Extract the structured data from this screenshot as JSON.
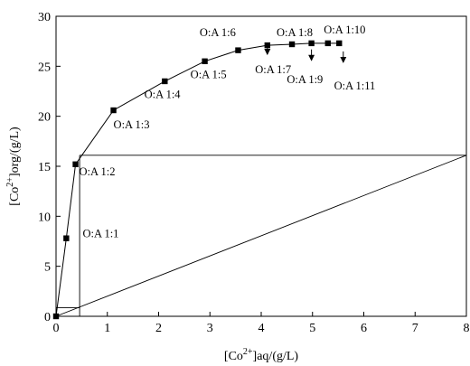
{
  "chart_data": {
    "type": "line",
    "title": "",
    "xlabel": {
      "prefix": "[Co",
      "sup": "2+",
      "suffix": "]aq/(g/L)"
    },
    "ylabel": {
      "prefix": "[Co",
      "sup": "2+",
      "suffix": "]org/(g/L)"
    },
    "xlim": [
      0,
      8
    ],
    "ylim": [
      0,
      30
    ],
    "xticks": [
      "0",
      "1",
      "2",
      "3",
      "4",
      "5",
      "6",
      "7",
      "8"
    ],
    "yticks": [
      "0",
      "5",
      "10",
      "15",
      "20",
      "25",
      "30"
    ],
    "grid": false,
    "series": [
      {
        "marker": "square",
        "color": "#000000",
        "x": [
          0.0,
          0.2,
          0.38,
          1.12,
          2.12,
          2.9,
          3.55,
          4.12,
          4.6,
          4.98,
          5.3,
          5.52
        ],
        "y": [
          0.0,
          7.8,
          15.2,
          20.6,
          23.5,
          25.5,
          26.6,
          27.1,
          27.2,
          27.3,
          27.3,
          27.3
        ]
      }
    ],
    "operating_line": {
      "x": [
        0,
        8
      ],
      "y": [
        0,
        16.1
      ]
    },
    "construction_lines": [
      {
        "x": [
          0.46,
          0.46
        ],
        "y": [
          0,
          16.1
        ]
      },
      {
        "x": [
          0.46,
          8
        ],
        "y": [
          16.1,
          16.1
        ]
      },
      {
        "x": [
          0,
          0.46
        ],
        "y": [
          0.85,
          0.85
        ]
      }
    ],
    "annotations": [
      {
        "text": "O:A 1:1",
        "x": 0.52,
        "y": 7.9,
        "arrow": false
      },
      {
        "text": "O:A 1:2",
        "x": 0.45,
        "y": 14.1,
        "arrow": false
      },
      {
        "text": "O:A 1:3",
        "x": 1.12,
        "y": 18.8,
        "arrow": false
      },
      {
        "text": "O:A 1:4",
        "x": 1.72,
        "y": 21.8,
        "arrow": false
      },
      {
        "text": "O:A 1:5",
        "x": 2.62,
        "y": 23.8,
        "arrow": false
      },
      {
        "text": "O:A 1:6",
        "x": 2.8,
        "y": 28.0,
        "arrow": false
      },
      {
        "text": "O:A 1:7",
        "x": 3.88,
        "y": 24.3,
        "arrow": true,
        "arrow_to_x": 4.12,
        "arrow_to_y": 26.2
      },
      {
        "text": "O:A 1:8",
        "x": 4.3,
        "y": 28.0,
        "arrow": false
      },
      {
        "text": "O:A 1:9",
        "x": 4.5,
        "y": 23.3,
        "arrow": true,
        "arrow_to_x": 4.98,
        "arrow_to_y": 25.6
      },
      {
        "text": "O:A 1:10",
        "x": 5.22,
        "y": 28.3,
        "arrow": false
      },
      {
        "text": "O:A 1:11",
        "x": 5.42,
        "y": 22.7,
        "arrow": true,
        "arrow_to_x": 5.6,
        "arrow_to_y": 25.4
      }
    ]
  }
}
